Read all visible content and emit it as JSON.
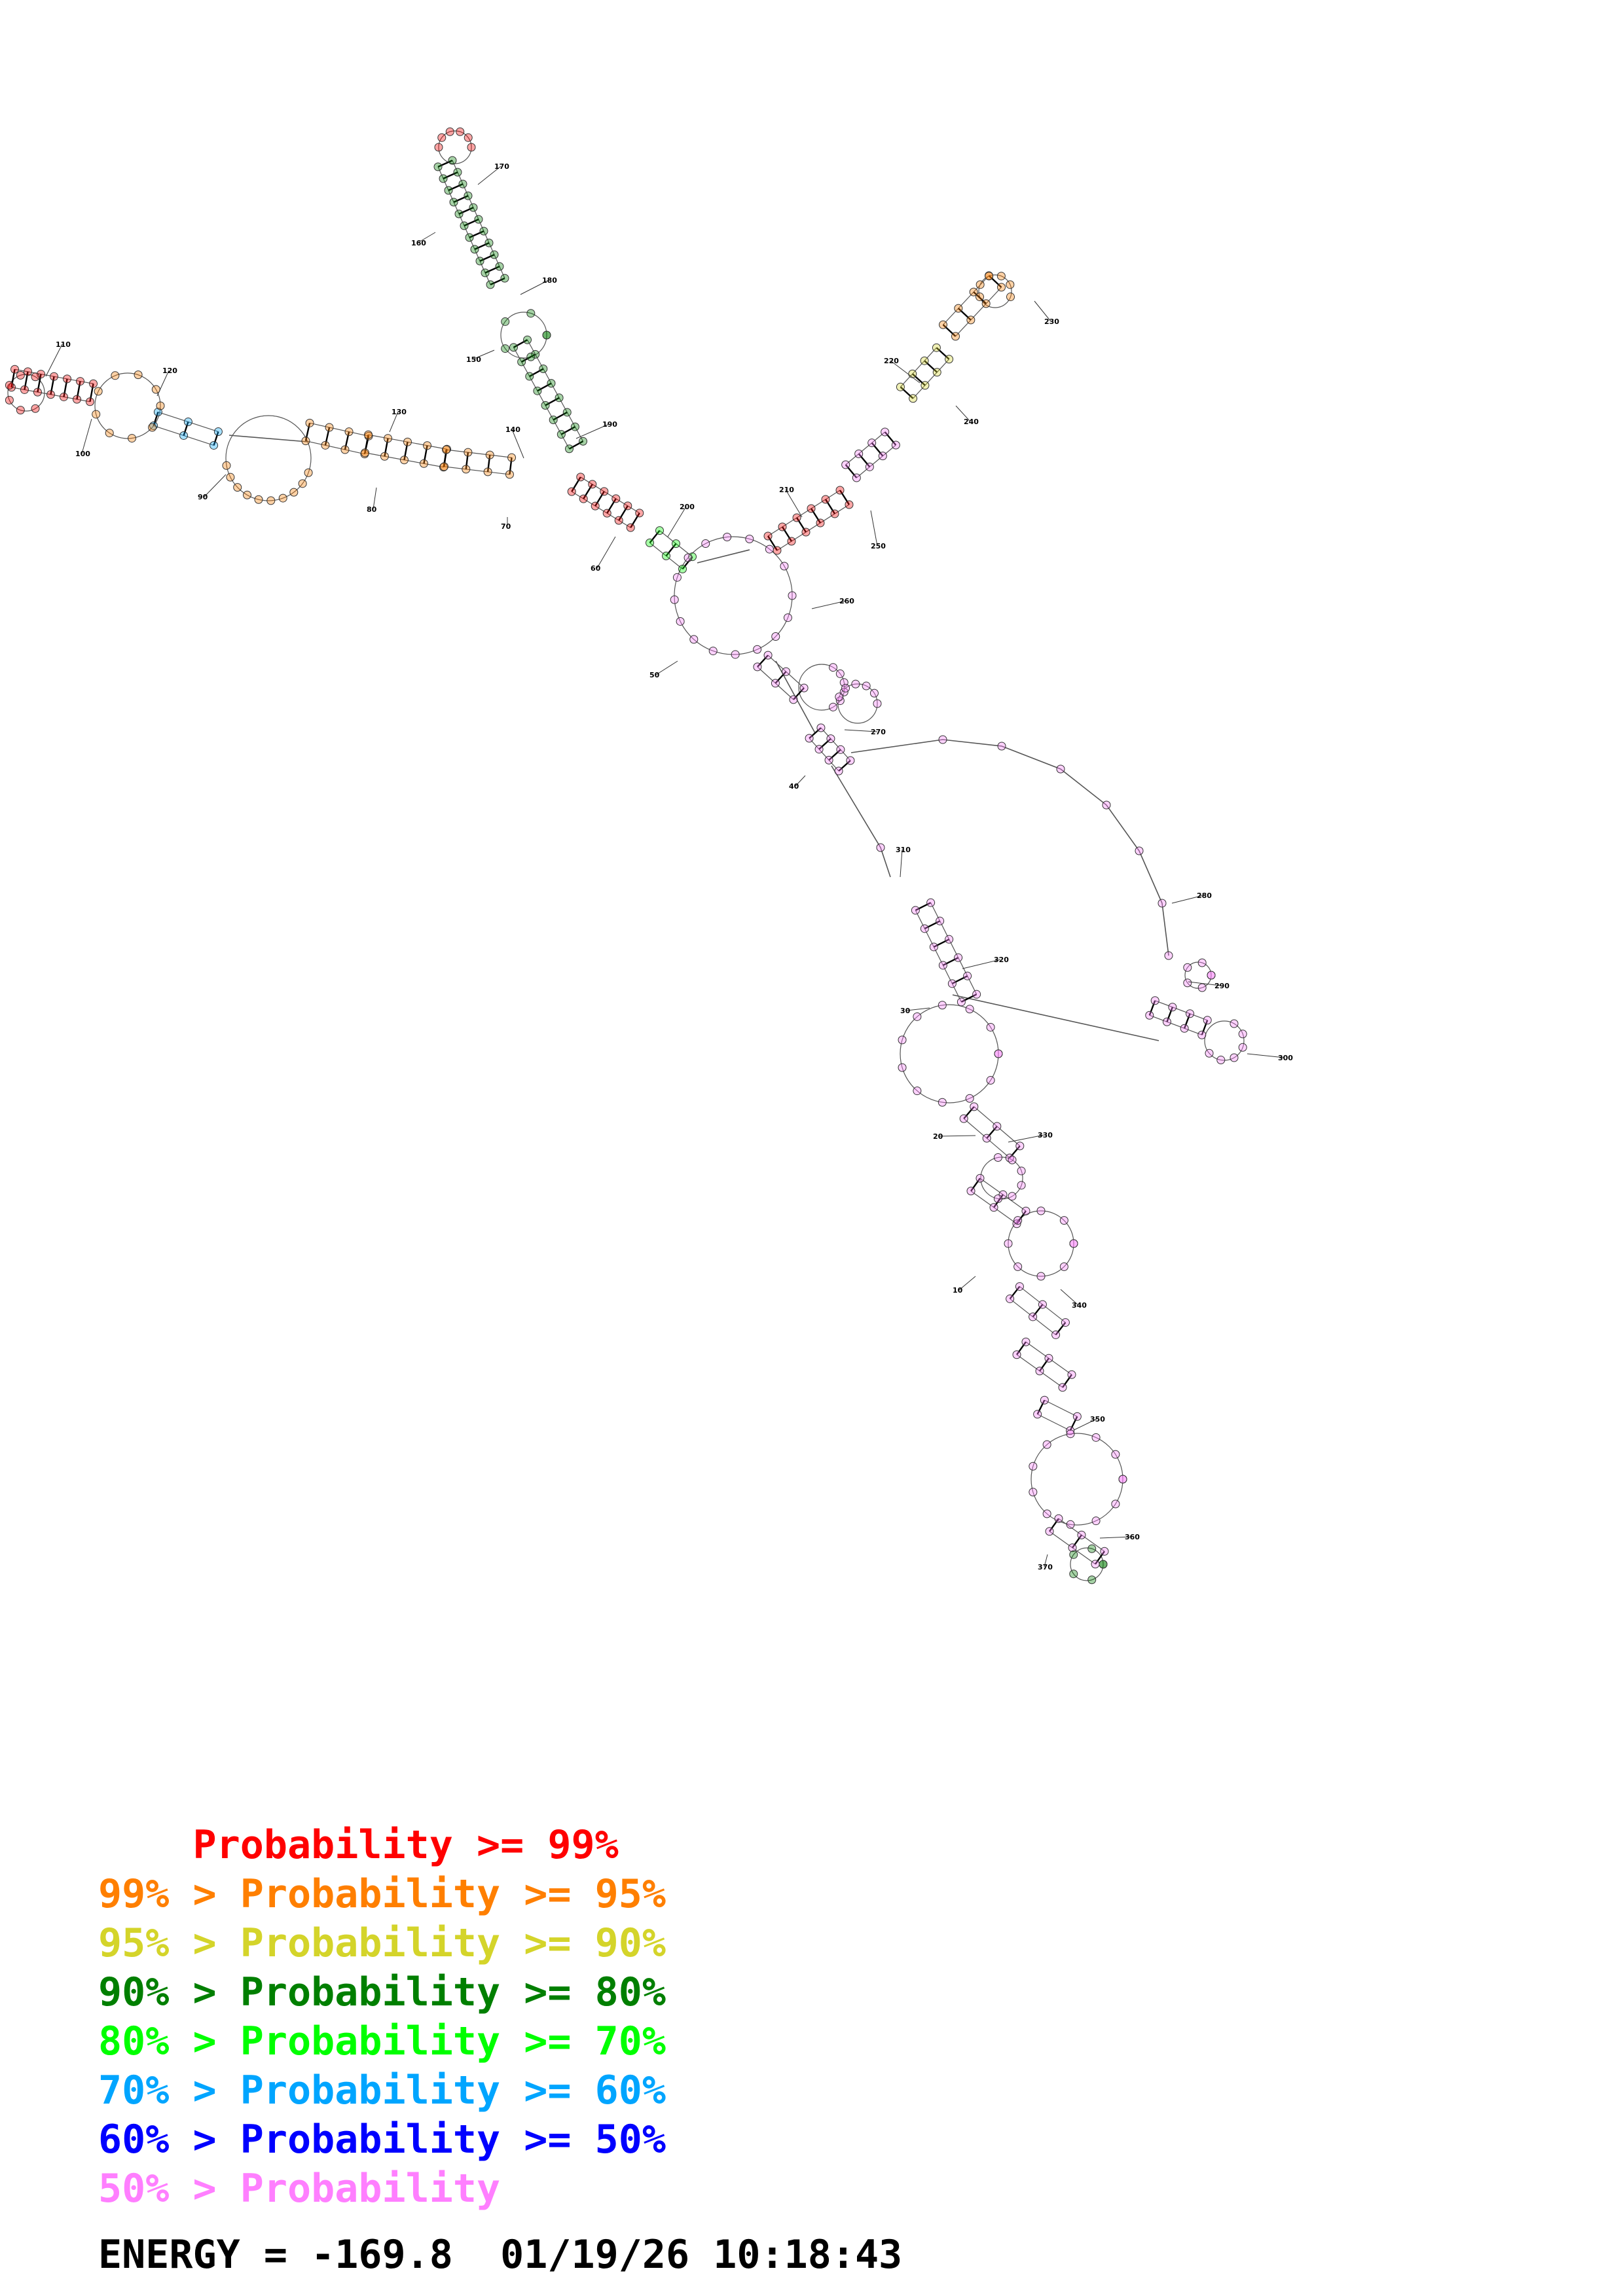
{
  "position_labels": [
    "10",
    "20",
    "30",
    "40",
    "50",
    "60",
    "70",
    "80",
    "90",
    "100",
    "110",
    "120",
    "130",
    "140",
    "150",
    "160",
    "170",
    "180",
    "190",
    "200",
    "210",
    "220",
    "230",
    "240",
    "250",
    "260",
    "270",
    "280",
    "290",
    "300",
    "310",
    "320",
    "330",
    "340",
    "350",
    "360",
    "370"
  ],
  "legend": {
    "rows": [
      {
        "prefix": "    ",
        "main": "Probability >= 99%",
        "color": "#ff0000"
      },
      {
        "prefix": "99% > ",
        "main": "Probability >= 95%",
        "color": "#ff7f00"
      },
      {
        "prefix": "95% > ",
        "main": "Probability >= 90%",
        "color": "#d4d42a"
      },
      {
        "prefix": "90% > ",
        "main": "Probability >= 80%",
        "color": "#007f00"
      },
      {
        "prefix": "80% > ",
        "main": "Probability >= 70%",
        "color": "#00ff00"
      },
      {
        "prefix": "70% > ",
        "main": "Probability >= 60%",
        "color": "#00a5ff"
      },
      {
        "prefix": "60% > ",
        "main": "Probability >= 50%",
        "color": "#0000ff"
      },
      {
        "prefix": "50% > ",
        "main": "Probability",
        "color": "#ff7fff"
      }
    ]
  },
  "energy_line": "ENERGY = -169.8  01/19/26 10:18:43",
  "colors": {
    "p99": "#ff0000",
    "p95": "#ff7f00",
    "p90": "#d4d42a",
    "p80": "#007f00",
    "p70": "#00ff00",
    "p60": "#00a5ff",
    "p50": "#0000ff",
    "plow": "#ff7fff"
  }
}
